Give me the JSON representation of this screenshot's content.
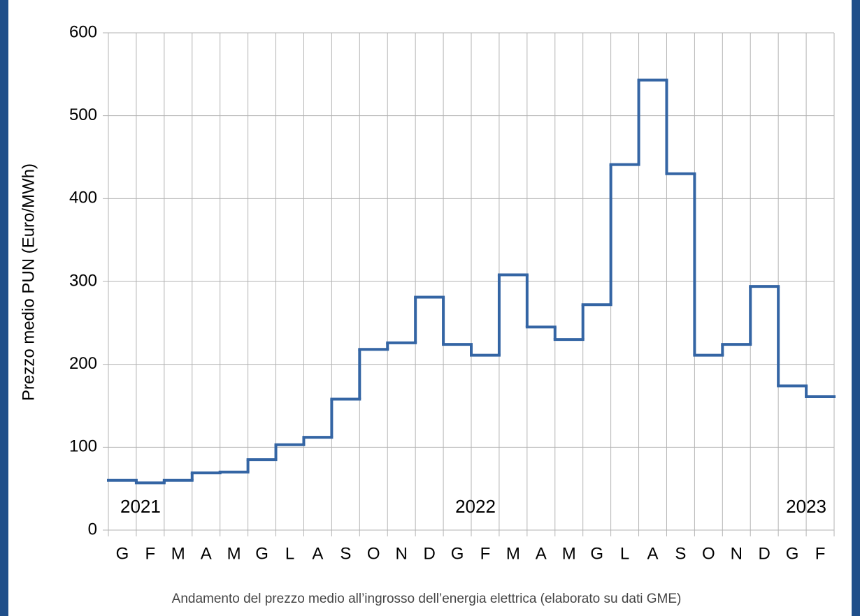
{
  "chart_data": {
    "type": "step",
    "y_label": "Prezzo medio PUN (Euro/MWh)",
    "caption": "Andamento del prezzo medio all’ingrosso dell’energia elettrica (elaborato su dati GME)",
    "year_labels": [
      "2021",
      "2022",
      "2023"
    ],
    "categories": [
      "G",
      "F",
      "M",
      "A",
      "M",
      "G",
      "L",
      "A",
      "S",
      "O",
      "N",
      "D",
      "G",
      "F",
      "M",
      "A",
      "M",
      "G",
      "L",
      "A",
      "S",
      "O",
      "N",
      "D",
      "G",
      "F"
    ],
    "values": [
      60,
      57,
      60,
      69,
      70,
      85,
      103,
      112,
      158,
      218,
      226,
      281,
      224,
      211,
      308,
      245,
      230,
      272,
      441,
      543,
      430,
      211,
      224,
      294,
      174,
      161
    ],
    "color": "#3465a4",
    "ylim": [
      0,
      600
    ],
    "yticks": [
      0,
      100,
      200,
      300,
      400,
      500,
      600
    ],
    "grid": true
  }
}
